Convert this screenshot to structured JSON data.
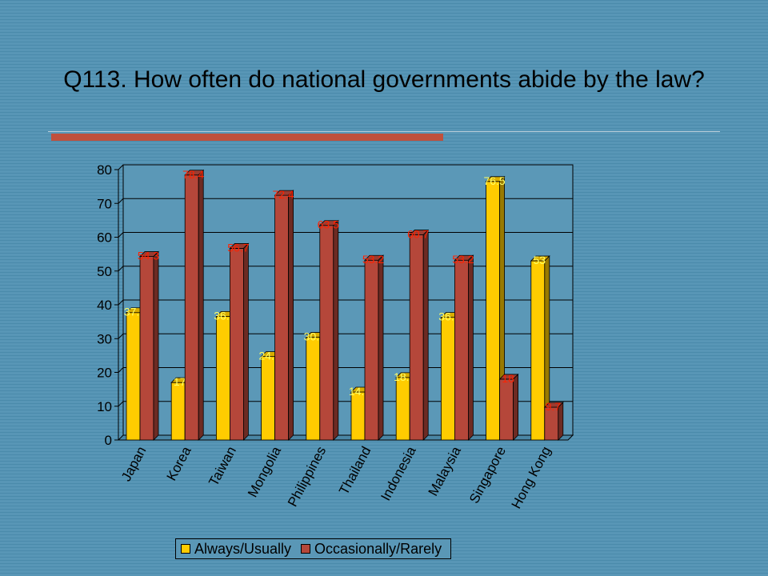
{
  "slide": {
    "title": "Q113. How often do national governments abide by the law?"
  },
  "chart_data": {
    "type": "bar",
    "title": "",
    "xlabel": "",
    "ylabel": "",
    "ylim": [
      0,
      80
    ],
    "yticks": [
      0,
      10,
      20,
      30,
      40,
      50,
      60,
      70,
      80
    ],
    "grid": true,
    "legend_position": "bottom",
    "categories": [
      "Japan",
      "Korea",
      "Taiwan",
      "Mongolia",
      "Philippines",
      "Thailand",
      "Indonesia",
      "Malaysia",
      "Singapore",
      "Hong Kong"
    ],
    "series": [
      {
        "name": "Always/Usually",
        "color": "#ffcc00",
        "label_color": "#ffff66",
        "values": [
          37.7,
          17,
          36.6,
          24.7,
          30.4,
          14.2,
          18.5,
          36.3,
          76.5,
          53
        ],
        "labels": [
          "37.7",
          "17",
          "36.6",
          "24.7",
          "30.4",
          "14.2",
          "18.5",
          "36.3",
          "76.5",
          "53"
        ]
      },
      {
        "name": "Occasionally/Rarely",
        "color": "#b5473a",
        "label_color": "#ff2200",
        "values": [
          54.3,
          78.4,
          56.7,
          72.4,
          63.5,
          53.2,
          60.7,
          53.2,
          18,
          9.7
        ],
        "labels": [
          "54.3",
          "78.4",
          "56.7",
          "72.4",
          "63.5",
          "53.2",
          "60.7",
          "53.2",
          "18",
          "9.7"
        ]
      }
    ]
  }
}
